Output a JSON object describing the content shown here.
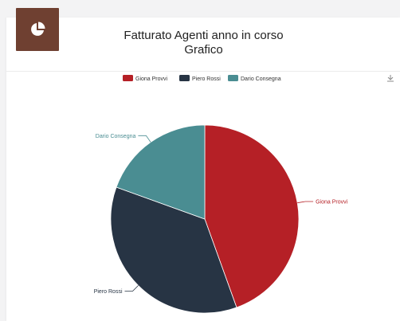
{
  "card": {
    "title_line1": "Fatturato Agenti anno in corso",
    "title_line2": "Grafico",
    "icon": "pie-chart-icon",
    "accent_color": "#6f4031"
  },
  "toolbar": {
    "download_icon": "download-icon"
  },
  "chart_data": {
    "type": "pie",
    "categories": [
      "Giona Provvi",
      "Piero Rossi",
      "Dario Consegna"
    ],
    "values": [
      44.5,
      36,
      19.5
    ],
    "colors": [
      "#b52026",
      "#273444",
      "#4a8d92"
    ],
    "legend": "top-center"
  }
}
